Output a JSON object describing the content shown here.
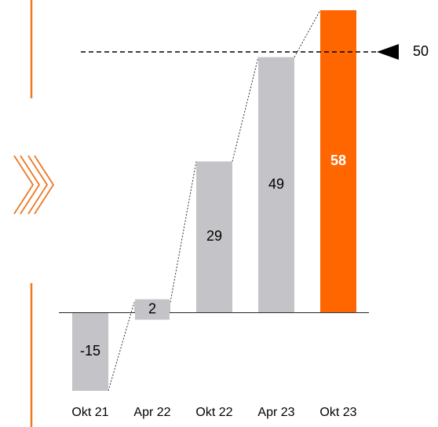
{
  "chart_data": {
    "type": "bar",
    "categories": [
      "Okt 21",
      "Apr 22",
      "Okt 22",
      "Apr 23",
      "Okt 23"
    ],
    "values": [
      -15,
      2,
      29,
      49,
      58
    ],
    "colors": [
      "#c4c4c8",
      "#c4c4c8",
      "#c4c4c8",
      "#c4c4c8",
      "#ff6600"
    ],
    "ylim": [
      -15,
      58
    ],
    "reference_line": 50
  }
}
